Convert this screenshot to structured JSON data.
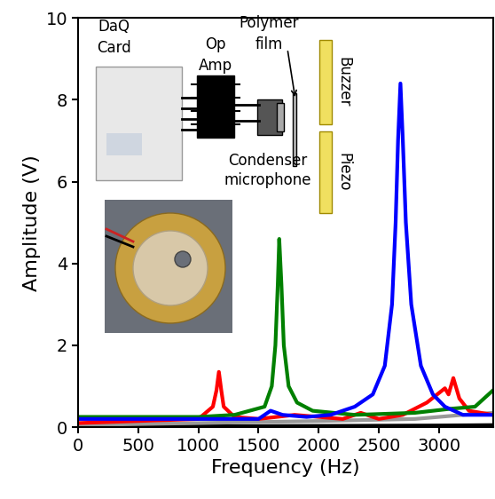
{
  "chart_data": {
    "type": "line",
    "x_label": "Frequency (Hz)",
    "y_label": "Amplitude (V)",
    "xlim": [
      0,
      3450
    ],
    "ylim": [
      0,
      10
    ],
    "xticks": [
      0,
      500,
      1000,
      1500,
      2000,
      2500,
      3000
    ],
    "yticks": [
      0,
      2,
      4,
      6,
      8,
      10
    ],
    "grid": false,
    "annotations": [
      "DaQ\nCard",
      "Op\nAmp",
      "Polymer\nfilm",
      "Buzzer",
      "Piezo",
      "Condenser\nmicrophone"
    ],
    "series": [
      {
        "color": "#000000",
        "x": [
          0,
          1000,
          2000,
          3000,
          3450
        ],
        "values": [
          0.0,
          0.02,
          0.03,
          0.04,
          0.05
        ]
      },
      {
        "color": "#999999",
        "x": [
          0,
          1000,
          2000,
          2800,
          3200,
          3450
        ],
        "values": [
          0.05,
          0.1,
          0.15,
          0.2,
          0.3,
          0.35
        ]
      },
      {
        "color": "#ff0000",
        "x": [
          0,
          500,
          1000,
          1120,
          1150,
          1170,
          1190,
          1210,
          1300,
          1500,
          1800,
          2000,
          2200,
          2350,
          2500,
          2700,
          2900,
          3050,
          3080,
          3120,
          3170,
          3250,
          3450
        ],
        "values": [
          0.1,
          0.15,
          0.2,
          0.5,
          0.9,
          1.35,
          0.9,
          0.5,
          0.25,
          0.2,
          0.3,
          0.25,
          0.2,
          0.35,
          0.2,
          0.3,
          0.6,
          0.95,
          0.8,
          1.2,
          0.7,
          0.4,
          0.3
        ]
      },
      {
        "color": "#008000",
        "x": [
          0,
          1000,
          1300,
          1550,
          1610,
          1640,
          1660,
          1672,
          1690,
          1710,
          1750,
          1820,
          1950,
          2300,
          2800,
          3100,
          3300,
          3450
        ],
        "values": [
          0.25,
          0.25,
          0.3,
          0.5,
          1.0,
          2.0,
          3.5,
          4.6,
          3.5,
          2.0,
          1.0,
          0.6,
          0.4,
          0.3,
          0.35,
          0.45,
          0.5,
          0.9
        ]
      },
      {
        "color": "#0000ff",
        "x": [
          0,
          1000,
          1500,
          1600,
          1700,
          1900,
          2100,
          2300,
          2450,
          2550,
          2610,
          2640,
          2660,
          2680,
          2700,
          2725,
          2770,
          2850,
          2950,
          3050,
          3200,
          3450
        ],
        "values": [
          0.2,
          0.2,
          0.2,
          0.4,
          0.3,
          0.25,
          0.3,
          0.5,
          0.8,
          1.5,
          3.0,
          5.0,
          7.0,
          8.4,
          7.0,
          5.0,
          3.0,
          1.5,
          0.8,
          0.5,
          0.3,
          0.3
        ]
      }
    ]
  }
}
